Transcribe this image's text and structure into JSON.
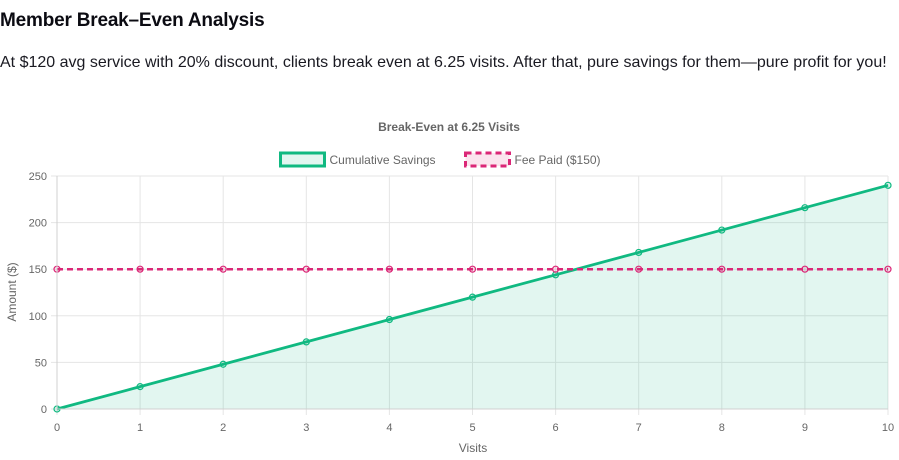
{
  "header": {
    "title": "Member Break–Even Analysis",
    "description": "At $120 avg service with 20% discount, clients break even at 6.25 visits. After that, pure savings for them—pure profit for you!"
  },
  "chart_data": {
    "type": "line",
    "title": "Break-Even at 6.25 Visits",
    "xlabel": "Visits",
    "ylabel": "Amount ($)",
    "x": [
      0,
      1,
      2,
      3,
      4,
      5,
      6,
      7,
      8,
      9,
      10
    ],
    "xlim": [
      0,
      10
    ],
    "ylim": [
      0,
      250
    ],
    "yticks": [
      0,
      50,
      100,
      150,
      200,
      250
    ],
    "grid": true,
    "legend_position": "top-center",
    "series": [
      {
        "name": "Cumulative Savings",
        "values": [
          0,
          24,
          48,
          72,
          96,
          120,
          144,
          168,
          192,
          216,
          240
        ],
        "color": "#10b981",
        "fill": "rgba(16,185,129,0.12)",
        "dashed": false,
        "filled": true
      },
      {
        "name": "Fee Paid ($150)",
        "values": [
          150,
          150,
          150,
          150,
          150,
          150,
          150,
          150,
          150,
          150,
          150
        ],
        "color": "#db2777",
        "fill": "rgba(219,39,119,0.12)",
        "dashed": true,
        "filled": false
      }
    ]
  }
}
